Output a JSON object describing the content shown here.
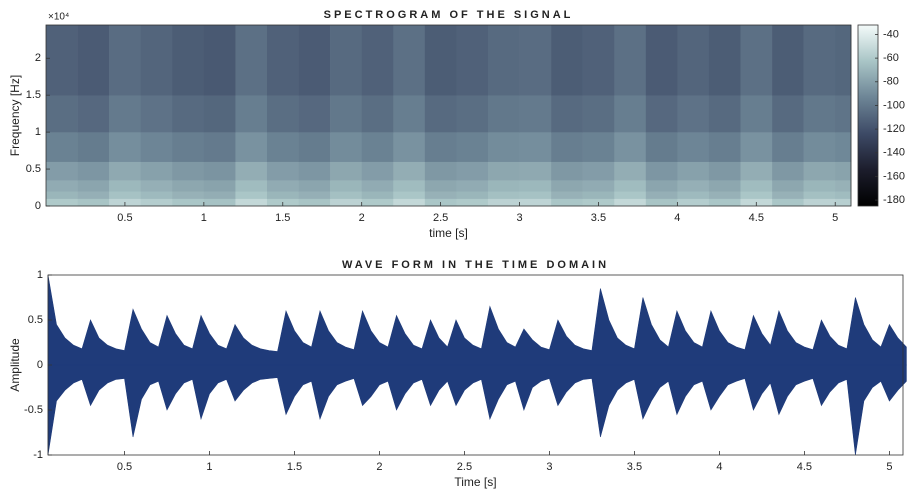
{
  "chart_data": [
    {
      "type": "heatmap",
      "title": "SPECTROGRAM OF THE SIGNAL",
      "xlabel": "time [s]",
      "ylabel": "Frequency [Hz]",
      "y_exponent_label": "×10⁴",
      "xlim": [
        0,
        5.1
      ],
      "xticks": [
        0.5,
        1,
        1.5,
        2,
        2.5,
        3,
        3.5,
        4,
        4.5,
        5
      ],
      "ylim": [
        0,
        24500
      ],
      "yticks": [
        0,
        {
          "value": 5000,
          "label": "0.5"
        },
        {
          "value": 10000,
          "label": "1"
        },
        {
          "value": 15000,
          "label": "1.5"
        },
        {
          "value": 20000,
          "label": "2"
        }
      ],
      "x_edges": [
        0,
        0.2,
        0.4,
        0.6,
        0.8,
        1.0,
        1.2,
        1.4,
        1.6,
        1.8,
        2.0,
        2.2,
        2.4,
        2.6,
        2.8,
        3.0,
        3.2,
        3.4,
        3.6,
        3.8,
        4.0,
        4.2,
        4.4,
        4.6,
        4.8,
        5.0,
        5.1
      ],
      "y_edges": [
        0,
        1000,
        2000,
        3500,
        6000,
        10000,
        15000,
        24500
      ],
      "z": [
        [
          -60,
          -63,
          -54,
          -58,
          -62,
          -64,
          -52,
          -60,
          -63,
          -55,
          -60,
          -52,
          -62,
          -60,
          -55,
          -54,
          -62,
          -60,
          -52,
          -63,
          -58,
          -62,
          -52,
          -62,
          -55,
          -57
        ],
        [
          -70,
          -73,
          -64,
          -68,
          -72,
          -74,
          -62,
          -70,
          -73,
          -65,
          -70,
          -62,
          -72,
          -70,
          -65,
          -64,
          -72,
          -70,
          -62,
          -73,
          -68,
          -72,
          -62,
          -72,
          -65,
          -67
        ],
        [
          -75,
          -78,
          -69,
          -73,
          -77,
          -79,
          -67,
          -75,
          -78,
          -70,
          -75,
          -67,
          -77,
          -75,
          -70,
          -69,
          -77,
          -75,
          -67,
          -78,
          -73,
          -77,
          -67,
          -77,
          -70,
          -72
        ],
        [
          -82,
          -85,
          -76,
          -80,
          -84,
          -86,
          -74,
          -82,
          -85,
          -77,
          -82,
          -74,
          -84,
          -82,
          -77,
          -76,
          -84,
          -82,
          -74,
          -85,
          -80,
          -84,
          -74,
          -84,
          -77,
          -79
        ],
        [
          -95,
          -98,
          -89,
          -93,
          -97,
          -99,
          -87,
          -95,
          -98,
          -90,
          -95,
          -87,
          -97,
          -95,
          -90,
          -89,
          -97,
          -95,
          -87,
          -98,
          -93,
          -97,
          -87,
          -97,
          -90,
          -92
        ],
        [
          -105,
          -108,
          -99,
          -103,
          -107,
          -109,
          -97,
          -105,
          -108,
          -100,
          -105,
          -97,
          -107,
          -105,
          -100,
          -99,
          -107,
          -105,
          -97,
          -108,
          -103,
          -107,
          -97,
          -107,
          -100,
          -102
        ],
        [
          -112,
          -115,
          -106,
          -110,
          -114,
          -116,
          -104,
          -112,
          -115,
          -107,
          -112,
          -104,
          -114,
          -112,
          -107,
          -106,
          -114,
          -112,
          -104,
          -115,
          -110,
          -114,
          -104,
          -114,
          -107,
          -109
        ]
      ],
      "clim": [
        -185,
        -32
      ],
      "colorbar_ticks": [
        -40,
        -60,
        -80,
        -100,
        -120,
        -140,
        -160,
        -180
      ],
      "colormap": [
        "#000000",
        "#1c1d2c",
        "#3d4a66",
        "#6d8596",
        "#a9c5c6",
        "#f4fbfa"
      ]
    },
    {
      "type": "area",
      "title": "WAVE FORM IN THE TIME DOMAIN",
      "xlabel": "Time [s]",
      "ylabel": "Amplitude",
      "color": "#1f3b7a",
      "xlim": [
        0.05,
        5.08
      ],
      "xticks": [
        0.5,
        1,
        1.5,
        2,
        2.5,
        3,
        3.5,
        4,
        4.5,
        5
      ],
      "ylim": [
        -1,
        1
      ],
      "yticks": [
        -1,
        -0.5,
        0,
        0.5,
        1
      ],
      "x": [
        0.05,
        0.1,
        0.15,
        0.2,
        0.25,
        0.3,
        0.35,
        0.4,
        0.45,
        0.5,
        0.55,
        0.6,
        0.65,
        0.7,
        0.75,
        0.8,
        0.85,
        0.9,
        0.95,
        1.0,
        1.05,
        1.1,
        1.15,
        1.2,
        1.25,
        1.3,
        1.35,
        1.4,
        1.45,
        1.5,
        1.55,
        1.6,
        1.65,
        1.7,
        1.75,
        1.8,
        1.85,
        1.9,
        1.95,
        2.0,
        2.05,
        2.1,
        2.15,
        2.2,
        2.25,
        2.3,
        2.35,
        2.4,
        2.45,
        2.5,
        2.55,
        2.6,
        2.65,
        2.7,
        2.75,
        2.8,
        2.85,
        2.9,
        2.95,
        3.0,
        3.05,
        3.1,
        3.15,
        3.2,
        3.25,
        3.3,
        3.35,
        3.4,
        3.45,
        3.5,
        3.55,
        3.6,
        3.65,
        3.7,
        3.75,
        3.8,
        3.85,
        3.9,
        3.95,
        4.0,
        4.05,
        4.1,
        4.15,
        4.2,
        4.25,
        4.3,
        4.35,
        4.4,
        4.45,
        4.5,
        4.55,
        4.6,
        4.65,
        4.7,
        4.75,
        4.8,
        4.85,
        4.9,
        4.95,
        5.0,
        5.05,
        5.1
      ],
      "y_max": [
        1.0,
        0.45,
        0.3,
        0.22,
        0.18,
        0.5,
        0.3,
        0.22,
        0.18,
        0.16,
        0.62,
        0.4,
        0.25,
        0.2,
        0.55,
        0.35,
        0.22,
        0.18,
        0.55,
        0.35,
        0.22,
        0.18,
        0.45,
        0.3,
        0.22,
        0.18,
        0.16,
        0.15,
        0.6,
        0.38,
        0.25,
        0.2,
        0.6,
        0.38,
        0.25,
        0.2,
        0.17,
        0.6,
        0.38,
        0.25,
        0.2,
        0.55,
        0.35,
        0.22,
        0.18,
        0.5,
        0.3,
        0.2,
        0.5,
        0.3,
        0.22,
        0.18,
        0.65,
        0.4,
        0.25,
        0.2,
        0.4,
        0.28,
        0.2,
        0.17,
        0.5,
        0.32,
        0.22,
        0.18,
        0.16,
        0.85,
        0.5,
        0.3,
        0.22,
        0.18,
        0.75,
        0.45,
        0.28,
        0.2,
        0.6,
        0.38,
        0.25,
        0.2,
        0.6,
        0.38,
        0.25,
        0.2,
        0.17,
        0.55,
        0.35,
        0.22,
        0.6,
        0.38,
        0.25,
        0.2,
        0.17,
        0.5,
        0.32,
        0.22,
        0.18,
        0.75,
        0.45,
        0.28,
        0.2,
        0.45,
        0.3,
        0.2
      ],
      "y_min": [
        -1.0,
        -0.4,
        -0.28,
        -0.2,
        -0.16,
        -0.45,
        -0.28,
        -0.2,
        -0.16,
        -0.15,
        -0.8,
        -0.38,
        -0.22,
        -0.18,
        -0.5,
        -0.32,
        -0.2,
        -0.16,
        -0.6,
        -0.32,
        -0.2,
        -0.16,
        -0.4,
        -0.28,
        -0.2,
        -0.16,
        -0.15,
        -0.14,
        -0.55,
        -0.35,
        -0.22,
        -0.18,
        -0.6,
        -0.35,
        -0.22,
        -0.18,
        -0.15,
        -0.45,
        -0.35,
        -0.22,
        -0.18,
        -0.5,
        -0.32,
        -0.2,
        -0.16,
        -0.45,
        -0.28,
        -0.18,
        -0.45,
        -0.28,
        -0.2,
        -0.16,
        -0.6,
        -0.38,
        -0.22,
        -0.18,
        -0.5,
        -0.25,
        -0.18,
        -0.15,
        -0.45,
        -0.3,
        -0.2,
        -0.16,
        -0.15,
        -0.8,
        -0.45,
        -0.28,
        -0.2,
        -0.16,
        -0.6,
        -0.4,
        -0.25,
        -0.18,
        -0.55,
        -0.35,
        -0.22,
        -0.18,
        -0.5,
        -0.35,
        -0.22,
        -0.18,
        -0.15,
        -0.5,
        -0.32,
        -0.2,
        -0.55,
        -0.35,
        -0.22,
        -0.18,
        -0.15,
        -0.45,
        -0.3,
        -0.2,
        -0.16,
        -1.0,
        -0.4,
        -0.25,
        -0.18,
        -0.4,
        -0.28,
        -0.18
      ]
    }
  ]
}
